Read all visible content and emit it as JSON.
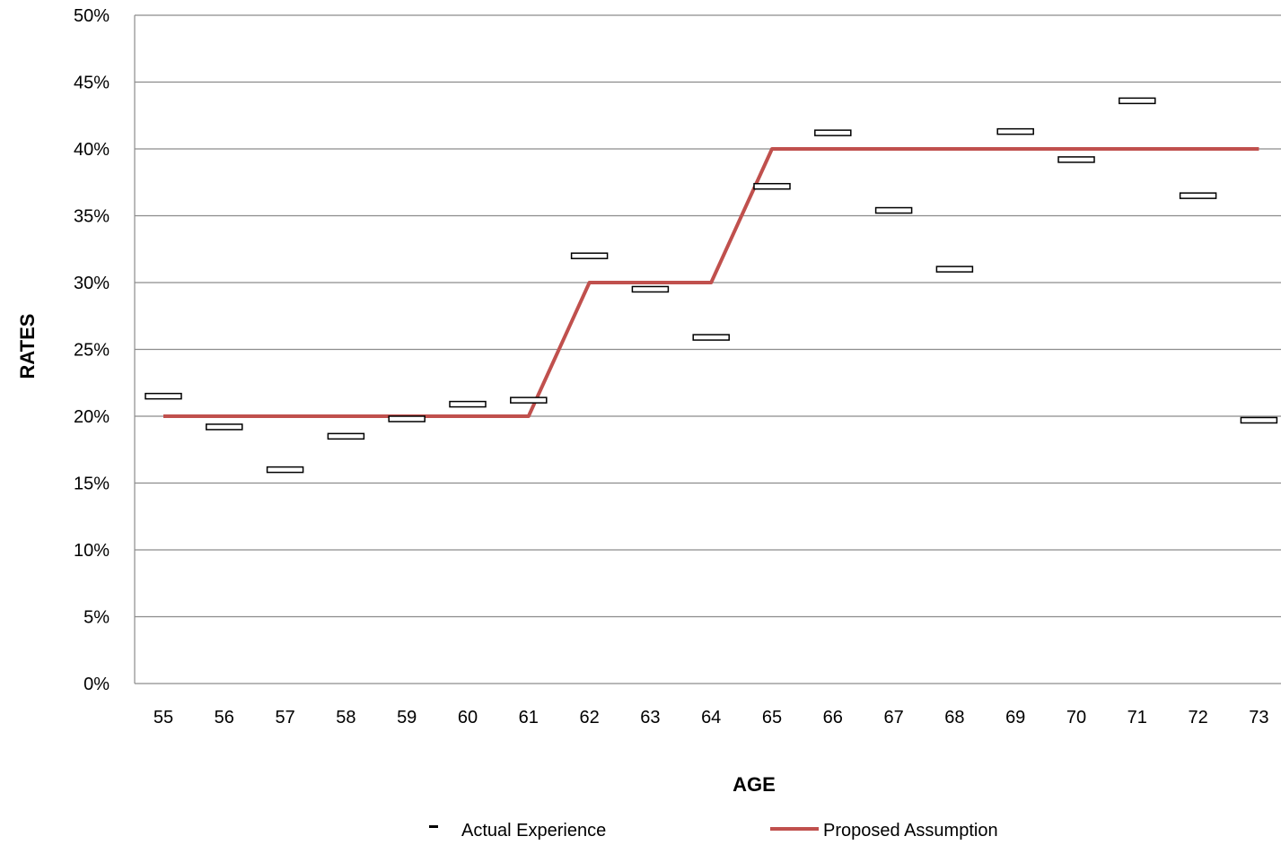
{
  "chart_data": {
    "type": "line",
    "title": "",
    "xlabel": "AGE",
    "ylabel": "RATES",
    "categories": [
      "55",
      "56",
      "57",
      "58",
      "59",
      "60",
      "61",
      "62",
      "63",
      "64",
      "65",
      "66",
      "67",
      "68",
      "69",
      "70",
      "71",
      "72",
      "73"
    ],
    "yticks": [
      "0%",
      "5%",
      "10%",
      "15%",
      "20%",
      "25%",
      "30%",
      "35%",
      "40%",
      "45%",
      "50%"
    ],
    "ylim": [
      0,
      0.5
    ],
    "grid": true,
    "legend_position": "bottom",
    "series": [
      {
        "name": "Actual Experience",
        "type": "marker",
        "color": "#000000",
        "values": [
          0.215,
          0.192,
          0.16,
          0.185,
          0.198,
          0.209,
          0.212,
          0.32,
          0.295,
          0.259,
          0.372,
          0.412,
          0.354,
          0.31,
          0.413,
          0.392,
          0.436,
          0.365,
          0.197
        ]
      },
      {
        "name": "Proposed Assumption",
        "type": "line",
        "color": "#c0504d",
        "values": [
          0.2,
          0.2,
          0.2,
          0.2,
          0.2,
          0.2,
          0.2,
          0.3,
          0.3,
          0.3,
          0.4,
          0.4,
          0.4,
          0.4,
          0.4,
          0.4,
          0.4,
          0.4,
          0.4
        ]
      }
    ]
  }
}
